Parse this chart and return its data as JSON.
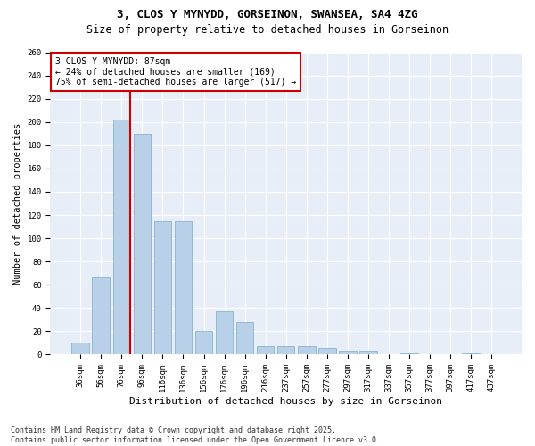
{
  "title_line1": "3, CLOS Y MYNYDD, GORSEINON, SWANSEA, SA4 4ZG",
  "title_line2": "Size of property relative to detached houses in Gorseinon",
  "xlabel": "Distribution of detached houses by size in Gorseinon",
  "ylabel": "Number of detached properties",
  "categories": [
    "36sqm",
    "56sqm",
    "76sqm",
    "96sqm",
    "116sqm",
    "136sqm",
    "156sqm",
    "176sqm",
    "196sqm",
    "216sqm",
    "237sqm",
    "257sqm",
    "277sqm",
    "297sqm",
    "317sqm",
    "337sqm",
    "357sqm",
    "377sqm",
    "397sqm",
    "417sqm",
    "437sqm"
  ],
  "values": [
    10,
    66,
    202,
    190,
    115,
    115,
    20,
    37,
    28,
    7,
    7,
    7,
    6,
    3,
    3,
    0,
    1,
    0,
    0,
    1,
    0
  ],
  "bar_color": "#b8d0e8",
  "bar_edge_color": "#7aaac8",
  "vline_x_idx": 2,
  "vline_color": "#cc0000",
  "annotation_text": "3 CLOS Y MYNYDD: 87sqm\n← 24% of detached houses are smaller (169)\n75% of semi-detached houses are larger (517) →",
  "annotation_box_facecolor": "#ffffff",
  "annotation_box_edgecolor": "#cc0000",
  "ylim": [
    0,
    260
  ],
  "yticks": [
    0,
    20,
    40,
    60,
    80,
    100,
    120,
    140,
    160,
    180,
    200,
    220,
    240,
    260
  ],
  "footer_line1": "Contains HM Land Registry data © Crown copyright and database right 2025.",
  "footer_line2": "Contains public sector information licensed under the Open Government Licence v3.0.",
  "background_color": "#ffffff",
  "plot_bg_color": "#e8eef8",
  "grid_color": "#ffffff",
  "title1_fontsize": 9,
  "title2_fontsize": 8.5,
  "xlabel_fontsize": 8,
  "ylabel_fontsize": 7.5,
  "tick_fontsize": 6.5,
  "annotation_fontsize": 7,
  "footer_fontsize": 6
}
